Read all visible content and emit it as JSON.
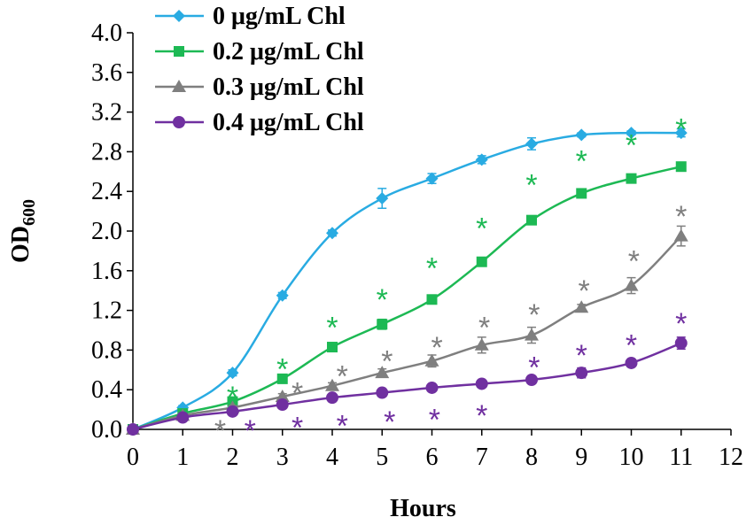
{
  "chart_data": {
    "type": "line",
    "title": "",
    "xlabel": "Hours",
    "ylabel_main": "OD",
    "ylabel_sub": "600",
    "xlim": [
      0,
      12
    ],
    "ylim": [
      0,
      4.0
    ],
    "x_ticks": [
      "0",
      "1",
      "2",
      "3",
      "4",
      "5",
      "6",
      "7",
      "8",
      "9",
      "10",
      "11",
      "12"
    ],
    "y_ticks": [
      "0.0",
      "0.4",
      "0.8",
      "1.2",
      "1.6",
      "2.0",
      "2.4",
      "2.8",
      "3.2",
      "3.6",
      "4.0"
    ],
    "grid": false,
    "legend_position": "top-left",
    "x": [
      0,
      1,
      2,
      3,
      4,
      5,
      6,
      7,
      8,
      9,
      10,
      11
    ],
    "series": [
      {
        "name": "0 μg/mL Chl",
        "color": "#29ABE2",
        "marker": "diamond",
        "values": [
          0.0,
          0.22,
          0.57,
          1.35,
          1.98,
          2.33,
          2.53,
          2.72,
          2.88,
          2.97,
          2.99,
          2.99
        ],
        "errors": [
          0.02,
          0.02,
          0.03,
          0.03,
          0.03,
          0.1,
          0.05,
          0.04,
          0.06,
          0.02,
          0.02,
          0.04
        ],
        "stars": [],
        "star_offsets": []
      },
      {
        "name": "0.2 μg/mL Chl",
        "color": "#1DB954",
        "marker": "square",
        "values": [
          0.0,
          0.16,
          0.28,
          0.51,
          0.83,
          1.06,
          1.31,
          1.69,
          2.11,
          2.38,
          2.53,
          2.65
        ],
        "errors": [
          0.02,
          0.02,
          0.02,
          0.03,
          0.03,
          0.05,
          0.03,
          0.03,
          0.04,
          0.03,
          0.03,
          0.04
        ],
        "stars": [
          2,
          3,
          4,
          5,
          6,
          7,
          8,
          9,
          10,
          11
        ],
        "star_offsets": [
          0.42,
          0.7,
          1.12,
          1.4,
          1.72,
          2.12,
          2.56,
          2.8,
          2.96,
          3.12
        ]
      },
      {
        "name": "0.3 μg/mL Chl",
        "color": "#7F7F7F",
        "marker": "triangle",
        "values": [
          0.0,
          0.14,
          0.22,
          0.33,
          0.44,
          0.57,
          0.69,
          0.85,
          0.95,
          1.23,
          1.45,
          1.95
        ],
        "errors": [
          0.02,
          0.02,
          0.02,
          0.03,
          0.03,
          0.04,
          0.06,
          0.08,
          0.08,
          0.03,
          0.08,
          0.1
        ],
        "stars": [
          1.75,
          3.3,
          4.2,
          5.1,
          6.1,
          7.05,
          8.05,
          9.05,
          10.05,
          11.0
        ],
        "star_offsets": [
          0.08,
          0.46,
          0.63,
          0.78,
          0.92,
          1.12,
          1.25,
          1.49,
          1.79,
          2.24
        ]
      },
      {
        "name": "0.4 μg/mL Chl",
        "color": "#7030A0",
        "marker": "circle",
        "values": [
          0.0,
          0.12,
          0.18,
          0.25,
          0.32,
          0.37,
          0.42,
          0.46,
          0.5,
          0.57,
          0.67,
          0.87
        ],
        "errors": [
          0.02,
          0.02,
          0.02,
          0.02,
          0.02,
          0.02,
          0.02,
          0.02,
          0.03,
          0.05,
          0.03,
          0.06
        ],
        "stars": [
          2.35,
          3.3,
          4.2,
          5.15,
          6.05,
          7.0,
          8.05,
          9.0,
          10.0,
          11.0
        ],
        "star_offsets": [
          0.08,
          0.11,
          0.13,
          0.17,
          0.19,
          0.23,
          0.72,
          0.84,
          0.94,
          1.16
        ]
      }
    ],
    "annotation_symbol": "*"
  }
}
